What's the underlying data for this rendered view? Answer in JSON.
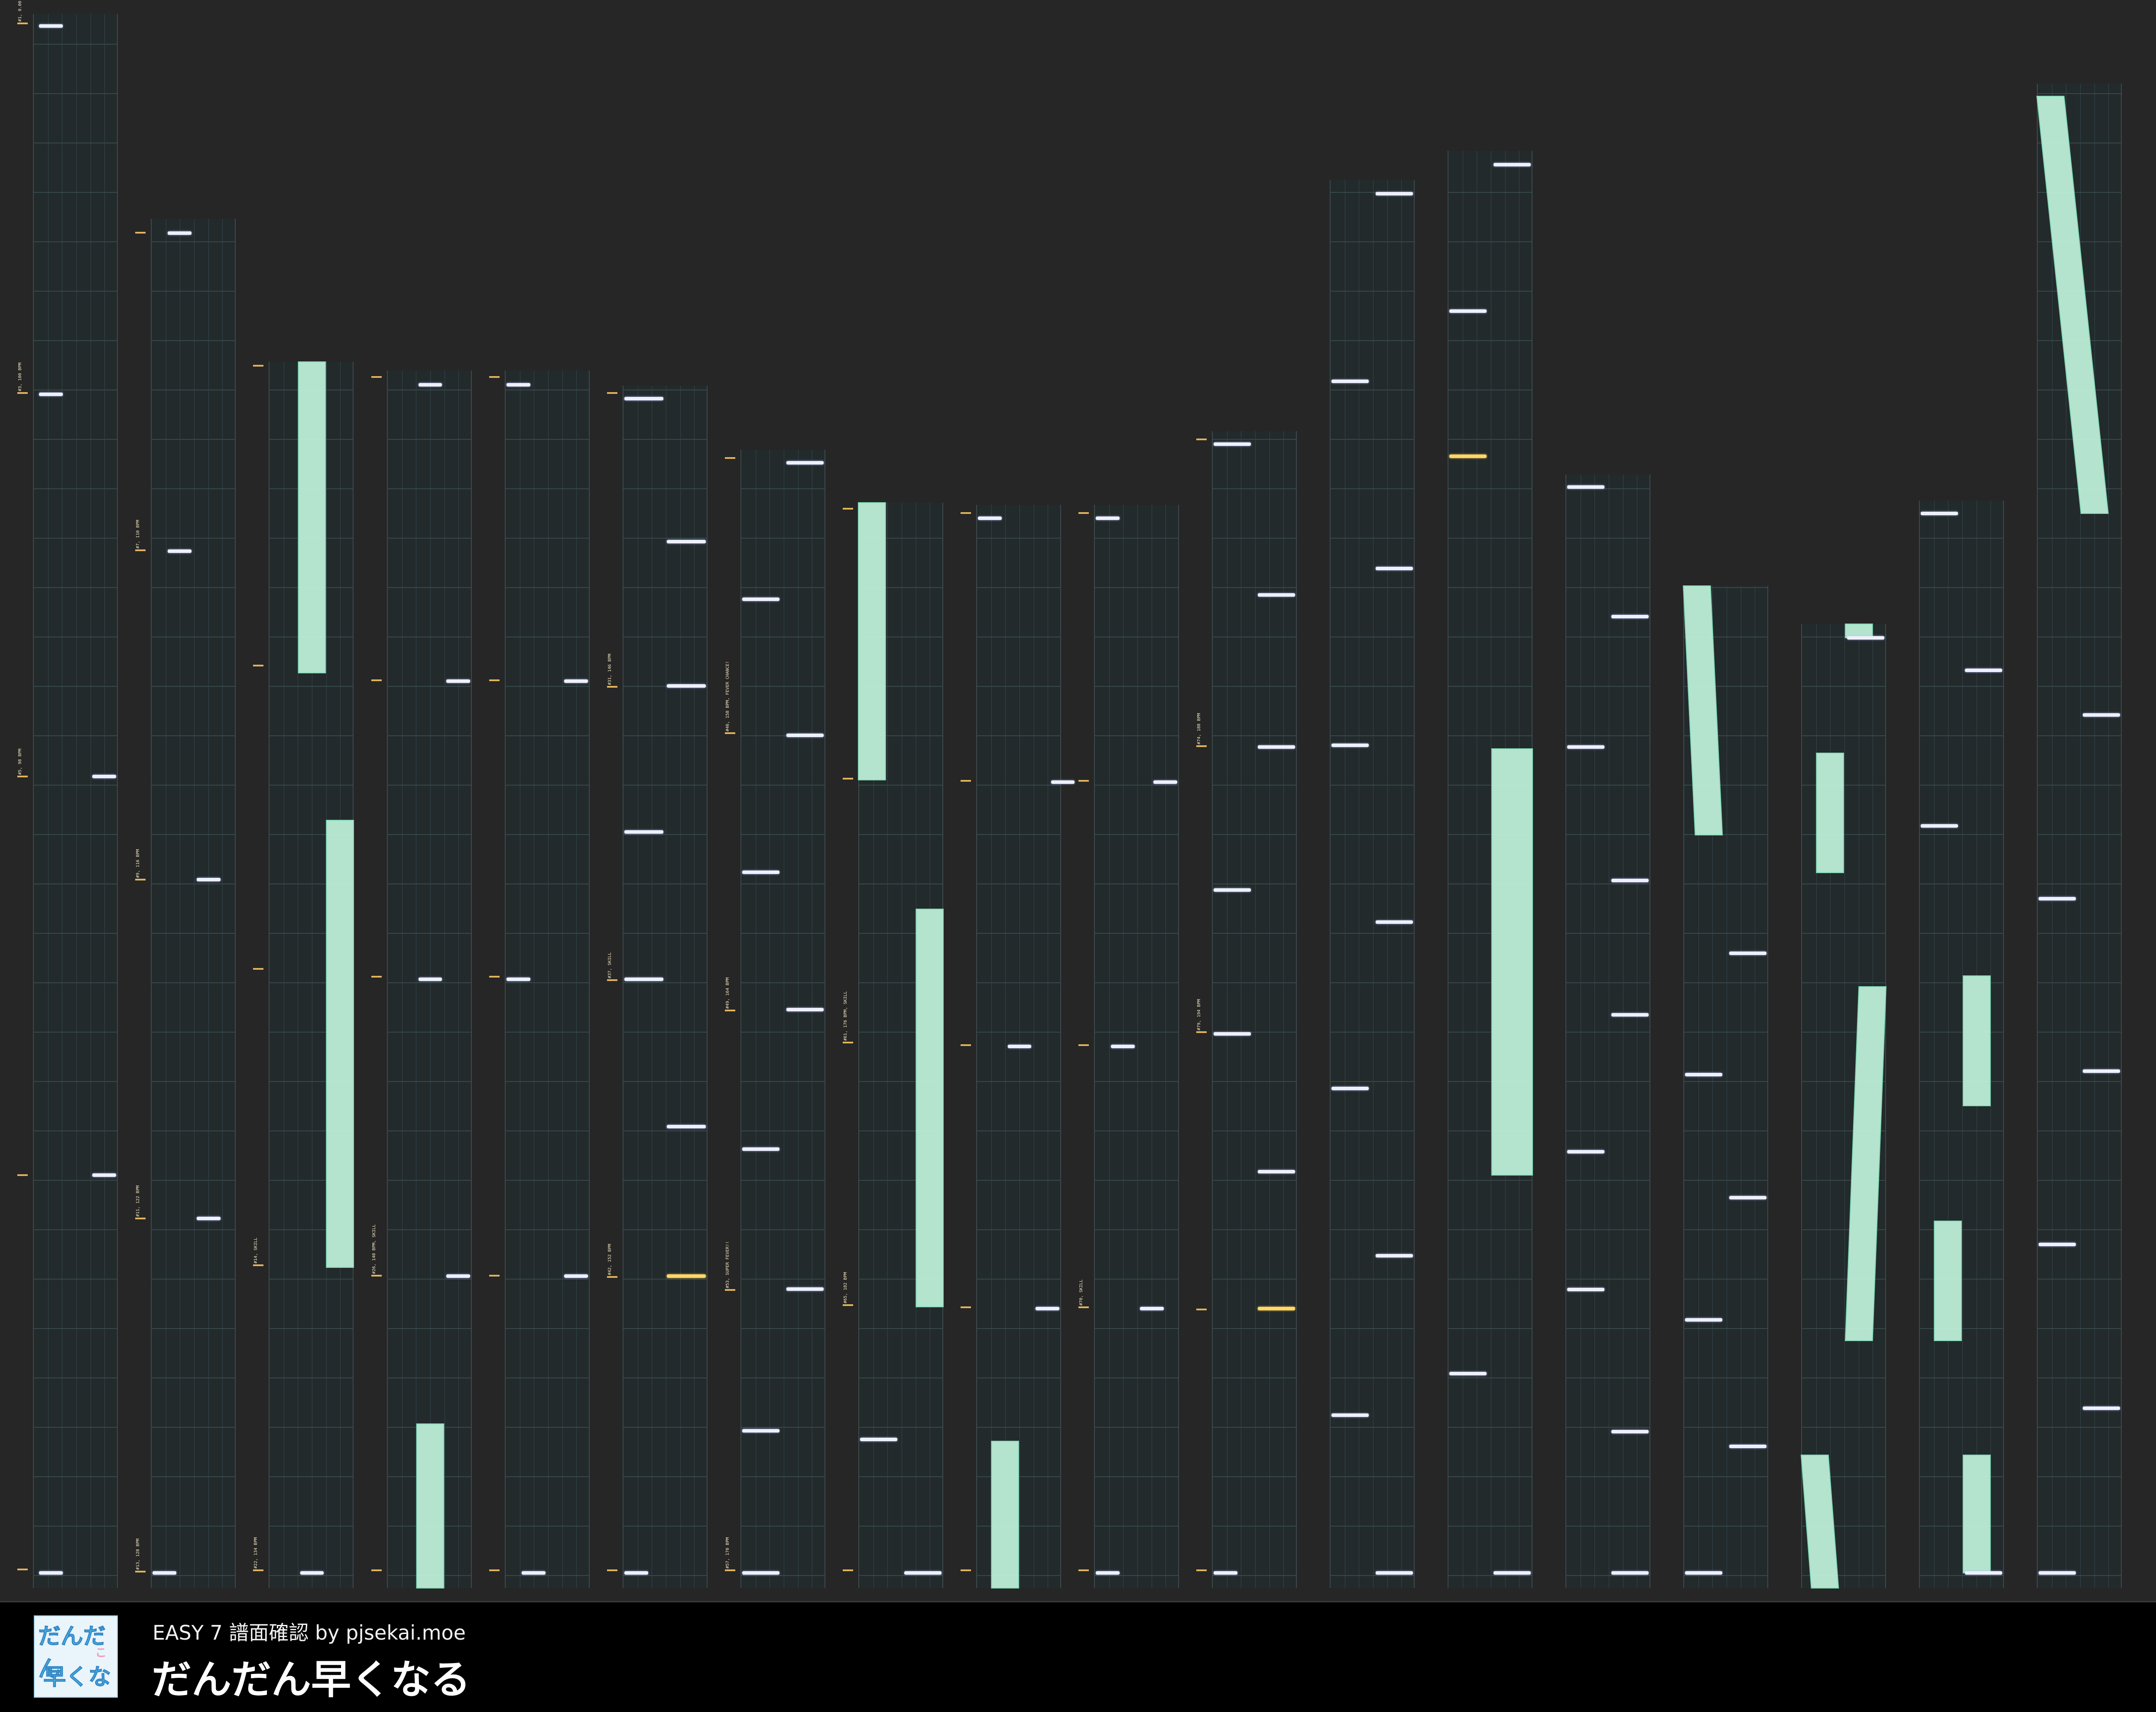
{
  "footer": {
    "subtitle": "EASY 7 譜面確認 by pjsekai.moe",
    "song_title": "だんだん早くなる",
    "jacket": {
      "alt": "jacket-artwork",
      "line1": "だんだん",
      "line2": "早くなる",
      "badge": "こ"
    }
  },
  "colors": {
    "background": "#262626",
    "lane": "#232a2c",
    "tap_note": "#eef0ff",
    "critical_note": "#ffd866",
    "slide": "#bdeed7",
    "marker": "#e0b45a"
  },
  "markers": [
    "#1, 0.00 BPM, 4/4",
    "#3, 100 BPM",
    "#5, 98 BPM",
    "#7, 110 BPM",
    "#9, 116 BPM",
    "#11, 122 BPM",
    "#13, 128 BPM",
    "#14, SKILL",
    "#22, 134 BPM",
    "#26, 140 BPM, SKILL",
    "#31, 146 BPM",
    "#37, SKILL",
    "#42, 152 BPM",
    "#46, 158 BPM, FEVER CHANCE!",
    "#49, 164 BPM",
    "#53, SUPER FEVER!!",
    "#57, 170 BPM",
    "#61, 176 BPM, SKILL",
    "#65, 182 BPM",
    "#70, SKILL",
    "#74, 188 BPM",
    "#79, 194 BPM"
  ]
}
